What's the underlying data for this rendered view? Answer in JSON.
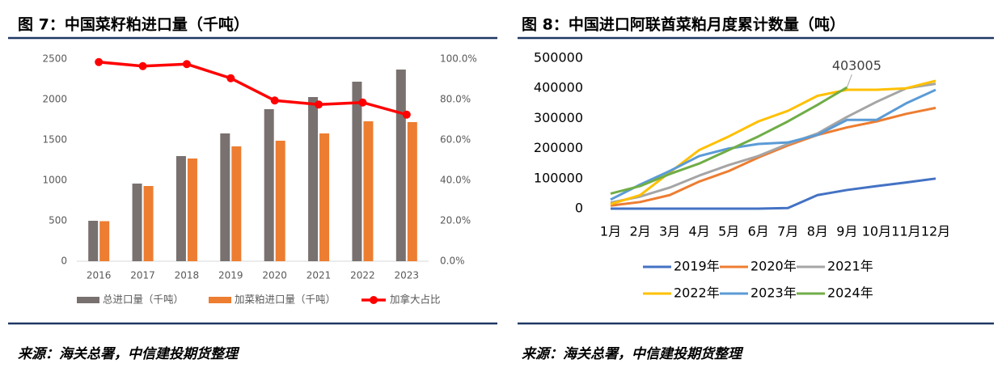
{
  "chart_data": [
    {
      "type": "bar",
      "title": "图 7：中国菜籽粕进口量（千吨）",
      "source": "来源：海关总署，中信建投期货整理",
      "categories": [
        "2016",
        "2017",
        "2018",
        "2019",
        "2020",
        "2021",
        "2022",
        "2023"
      ],
      "series": [
        {
          "name": "总进口量（千吨）",
          "color": "#78716f",
          "values": [
            500,
            960,
            1300,
            1580,
            1880,
            2030,
            2220,
            2370
          ]
        },
        {
          "name": "加菜粕进口量（千吨）",
          "color": "#ed7d31",
          "values": [
            495,
            930,
            1270,
            1420,
            1490,
            1580,
            1730,
            1720
          ]
        },
        {
          "name": "加拿大占比",
          "color": "#ff0000",
          "type": "line",
          "axis": "y2",
          "values": [
            98.5,
            96.5,
            97.5,
            90.5,
            79.5,
            77.5,
            78.5,
            72.5
          ]
        }
      ],
      "ylim": [
        0,
        2500
      ],
      "yticks": [
        0,
        500,
        1000,
        1500,
        2000,
        2500
      ],
      "y2lim": [
        0,
        100
      ],
      "y2ticks": [
        {
          "value": 0,
          "label": "0.0%"
        },
        {
          "value": 20,
          "label": "20.0%"
        },
        {
          "value": 40,
          "label": "40.0%"
        },
        {
          "value": 60,
          "label": "60.0%"
        },
        {
          "value": 80,
          "label": "80.0%"
        },
        {
          "value": 100,
          "label": "100.0%"
        }
      ],
      "legend": "bottom"
    },
    {
      "type": "line",
      "title": "图 8：中国进口阿联酋菜粕月度累计数量（吨）",
      "source": "来源：海关总署，中信建投期货整理",
      "categories": [
        "1月",
        "2月",
        "3月",
        "4月",
        "5月",
        "6月",
        "7月",
        "8月",
        "9月",
        "10月",
        "11月",
        "12月"
      ],
      "series": [
        {
          "name": "2019年",
          "color": "#4472c4",
          "values": [
            0,
            0,
            0,
            0,
            0,
            0,
            2000,
            45000,
            62000,
            75000,
            87000,
            100000
          ]
        },
        {
          "name": "2020年",
          "color": "#ed7d31",
          "values": [
            10000,
            22000,
            45000,
            90000,
            125000,
            170000,
            210000,
            245000,
            270000,
            290000,
            315000,
            335000
          ]
        },
        {
          "name": "2021年",
          "color": "#a5a5a5",
          "values": [
            20000,
            40000,
            70000,
            110000,
            145000,
            175000,
            215000,
            250000,
            305000,
            355000,
            400000,
            415000
          ]
        },
        {
          "name": "2022年",
          "color": "#ffc000",
          "values": [
            15000,
            45000,
            120000,
            195000,
            240000,
            290000,
            325000,
            375000,
            395000,
            395000,
            400000,
            425000
          ]
        },
        {
          "name": "2023年",
          "color": "#5b9bd5",
          "values": [
            30000,
            80000,
            125000,
            175000,
            200000,
            215000,
            220000,
            245000,
            295000,
            295000,
            350000,
            395000
          ]
        },
        {
          "name": "2024年",
          "color": "#70ad47",
          "values": [
            50000,
            75000,
            115000,
            150000,
            195000,
            240000,
            290000,
            345000,
            403005,
            null,
            null,
            null
          ]
        }
      ],
      "ylim": [
        0,
        500000
      ],
      "yticks": [
        0,
        100000,
        200000,
        300000,
        400000,
        500000
      ],
      "legend": "bottom"
    }
  ]
}
